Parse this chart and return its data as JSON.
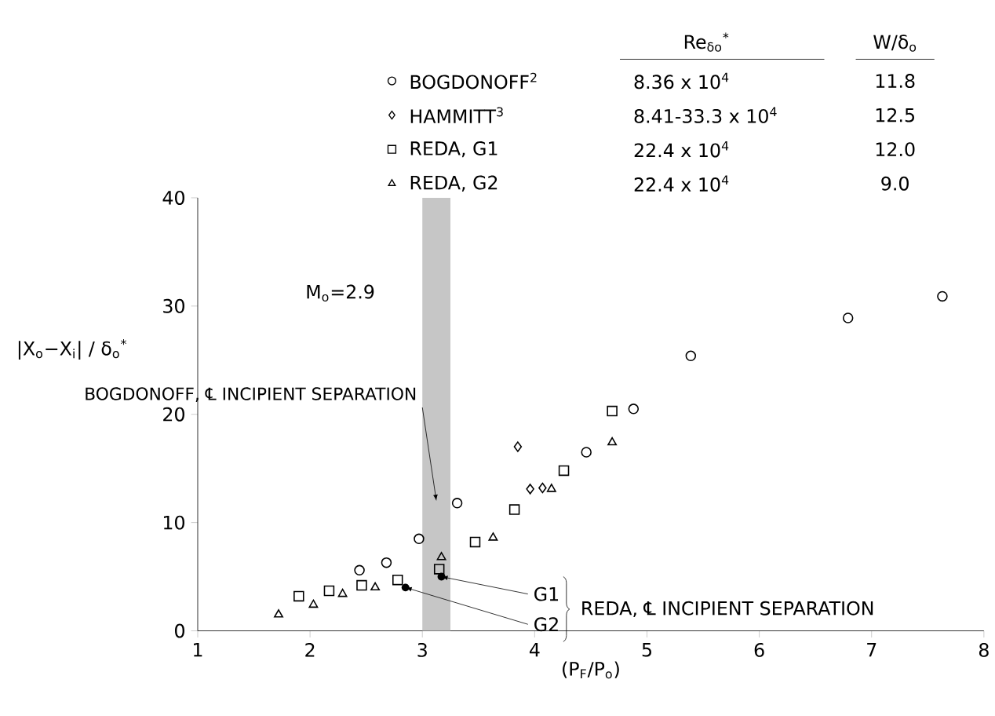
{
  "chart_data": {
    "type": "scatter",
    "xlabel": "(P$_{F}$/P$_{o}$)",
    "ylabel": "|X$_{o}$−X$_{i}$| / δ$_{o}$$^{*}$",
    "xlim": [
      1,
      8
    ],
    "ylim": [
      0,
      40
    ],
    "xticks": [
      1,
      2,
      3,
      4,
      5,
      6,
      7,
      8
    ],
    "yticks": [
      0,
      10,
      20,
      30,
      40
    ],
    "legend": "top",
    "series": [
      {
        "name": "BOGDONOFF$^{2}$",
        "color": "#000000",
        "marker": "circle",
        "x": [
          2.44,
          2.68,
          2.97,
          3.31,
          4.46,
          4.88,
          5.39,
          6.79,
          7.63
        ],
        "values": [
          5.6,
          6.3,
          8.5,
          11.8,
          16.5,
          20.5,
          25.4,
          28.9,
          30.9
        ]
      },
      {
        "name": "HAMMITT$^{3}$",
        "color": "#000000",
        "marker": "diamond",
        "x": [
          3.85,
          3.96,
          4.07
        ],
        "values": [
          17.0,
          13.1,
          13.2
        ]
      },
      {
        "name": "REDA, G1",
        "color": "#000000",
        "marker": "square",
        "x": [
          1.9,
          2.17,
          2.46,
          2.78,
          3.15,
          3.47,
          3.82,
          4.26,
          4.69
        ],
        "values": [
          3.2,
          3.7,
          4.2,
          4.7,
          5.7,
          8.2,
          11.2,
          14.8,
          20.3
        ]
      },
      {
        "name": "REDA, G2",
        "color": "#000000",
        "marker": "triangle",
        "x": [
          1.72,
          2.03,
          2.29,
          2.58,
          3.17,
          3.63,
          4.15,
          4.69
        ],
        "values": [
          1.5,
          2.4,
          3.4,
          4.0,
          6.8,
          8.6,
          13.1,
          17.4
        ]
      }
    ],
    "bands": [
      {
        "axis": "x",
        "from": 3.0,
        "to": 3.25,
        "label": "BOGDONOFF, ℄ INCIPIENT SEPARATION"
      }
    ],
    "annotations": [
      "M$_{o}$=2.9",
      {
        "text": "G1",
        "x": 3.17,
        "y": 5.0
      },
      {
        "text": "G2",
        "x": 2.85,
        "y": 4.0
      },
      "REDA, ℄ INCIPIENT SEPARATION",
      "Re$_{δo}$$^{*}$",
      "W/δ$_{o}$",
      "8.36 x 10$^{4}$",
      "8.41-33.3 x 10$^{4}$",
      "22.4 x 10$^{4}$",
      "22.4 x 10$^{4}$",
      "11.8",
      "12.5",
      "12.0",
      "9.0"
    ]
  }
}
